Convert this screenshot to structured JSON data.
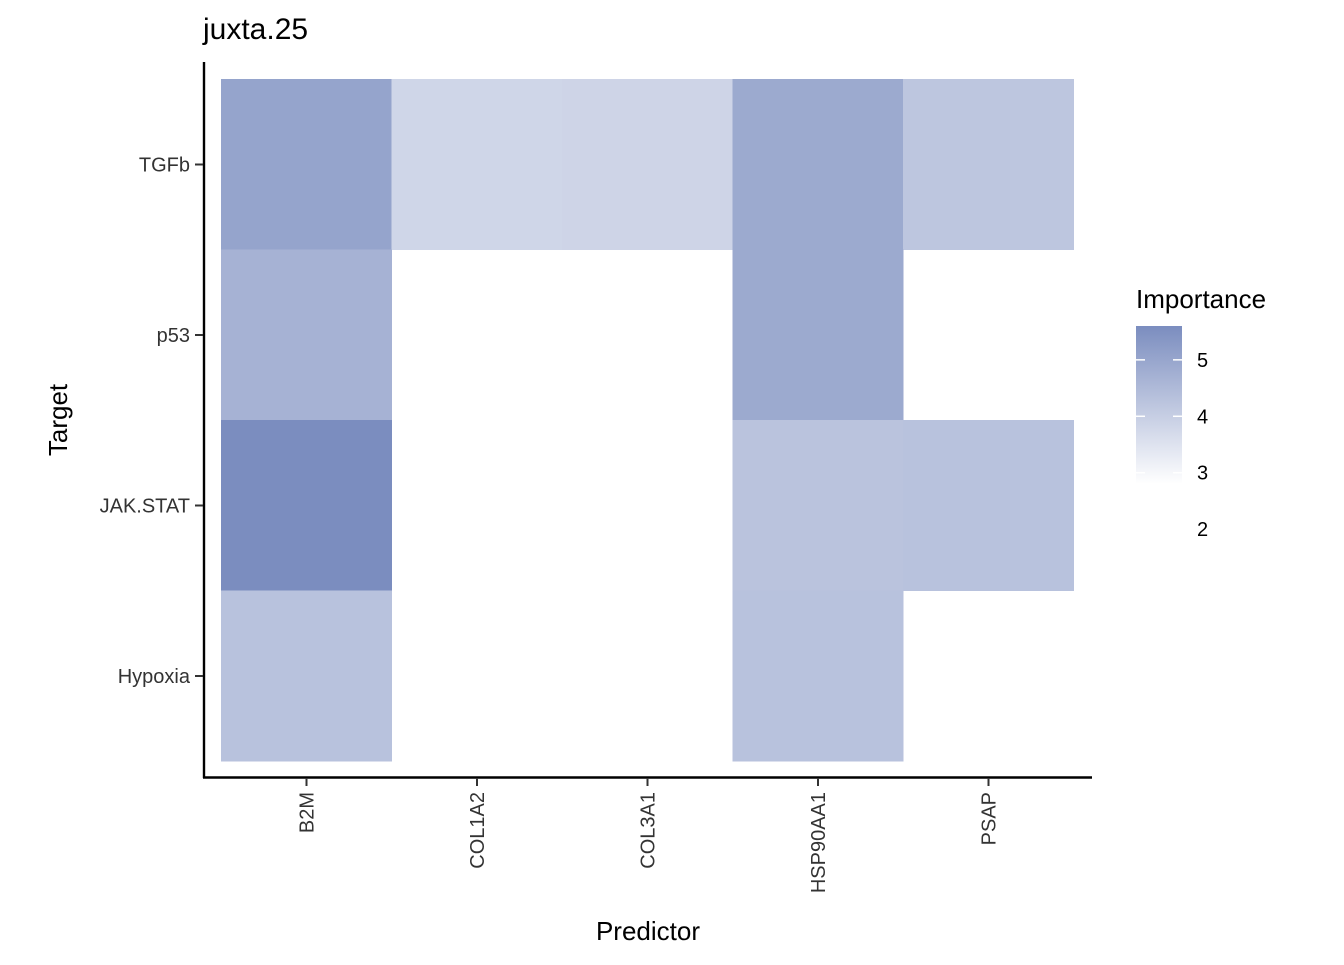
{
  "chart_data": {
    "type": "heatmap",
    "title": "juxta.25",
    "xlabel": "Predictor",
    "ylabel": "Target",
    "x_categories": [
      "B2M",
      "COL1A2",
      "COL3A1",
      "HSP90AA1",
      "PSAP"
    ],
    "y_categories": [
      "Hypoxia",
      "JAK.STAT",
      "p53",
      "TGFb"
    ],
    "cells": [
      {
        "x": "B2M",
        "y": "TGFb",
        "value": 4.8
      },
      {
        "x": "COL1A2",
        "y": "TGFb",
        "value": 3.05
      },
      {
        "x": "COL3A1",
        "y": "TGFb",
        "value": 3.1
      },
      {
        "x": "HSP90AA1",
        "y": "TGFb",
        "value": 4.6
      },
      {
        "x": "PSAP",
        "y": "TGFb",
        "value": 3.6
      },
      {
        "x": "B2M",
        "y": "p53",
        "value": 4.3
      },
      {
        "x": "HSP90AA1",
        "y": "p53",
        "value": 4.6
      },
      {
        "x": "B2M",
        "y": "JAK.STAT",
        "value": 5.6
      },
      {
        "x": "HSP90AA1",
        "y": "JAK.STAT",
        "value": 3.7
      },
      {
        "x": "PSAP",
        "y": "JAK.STAT",
        "value": 3.75
      },
      {
        "x": "B2M",
        "y": "Hypoxia",
        "value": 3.75
      },
      {
        "x": "HSP90AA1",
        "y": "Hypoxia",
        "value": 3.75
      }
    ],
    "legend": {
      "title": "Importance",
      "position": "right",
      "ticks": [
        5,
        4,
        3,
        2
      ],
      "range": [
        1.6,
        5.6
      ],
      "low_color": "#ffffff",
      "high_color": "#7b8dbf"
    },
    "grid": false
  }
}
